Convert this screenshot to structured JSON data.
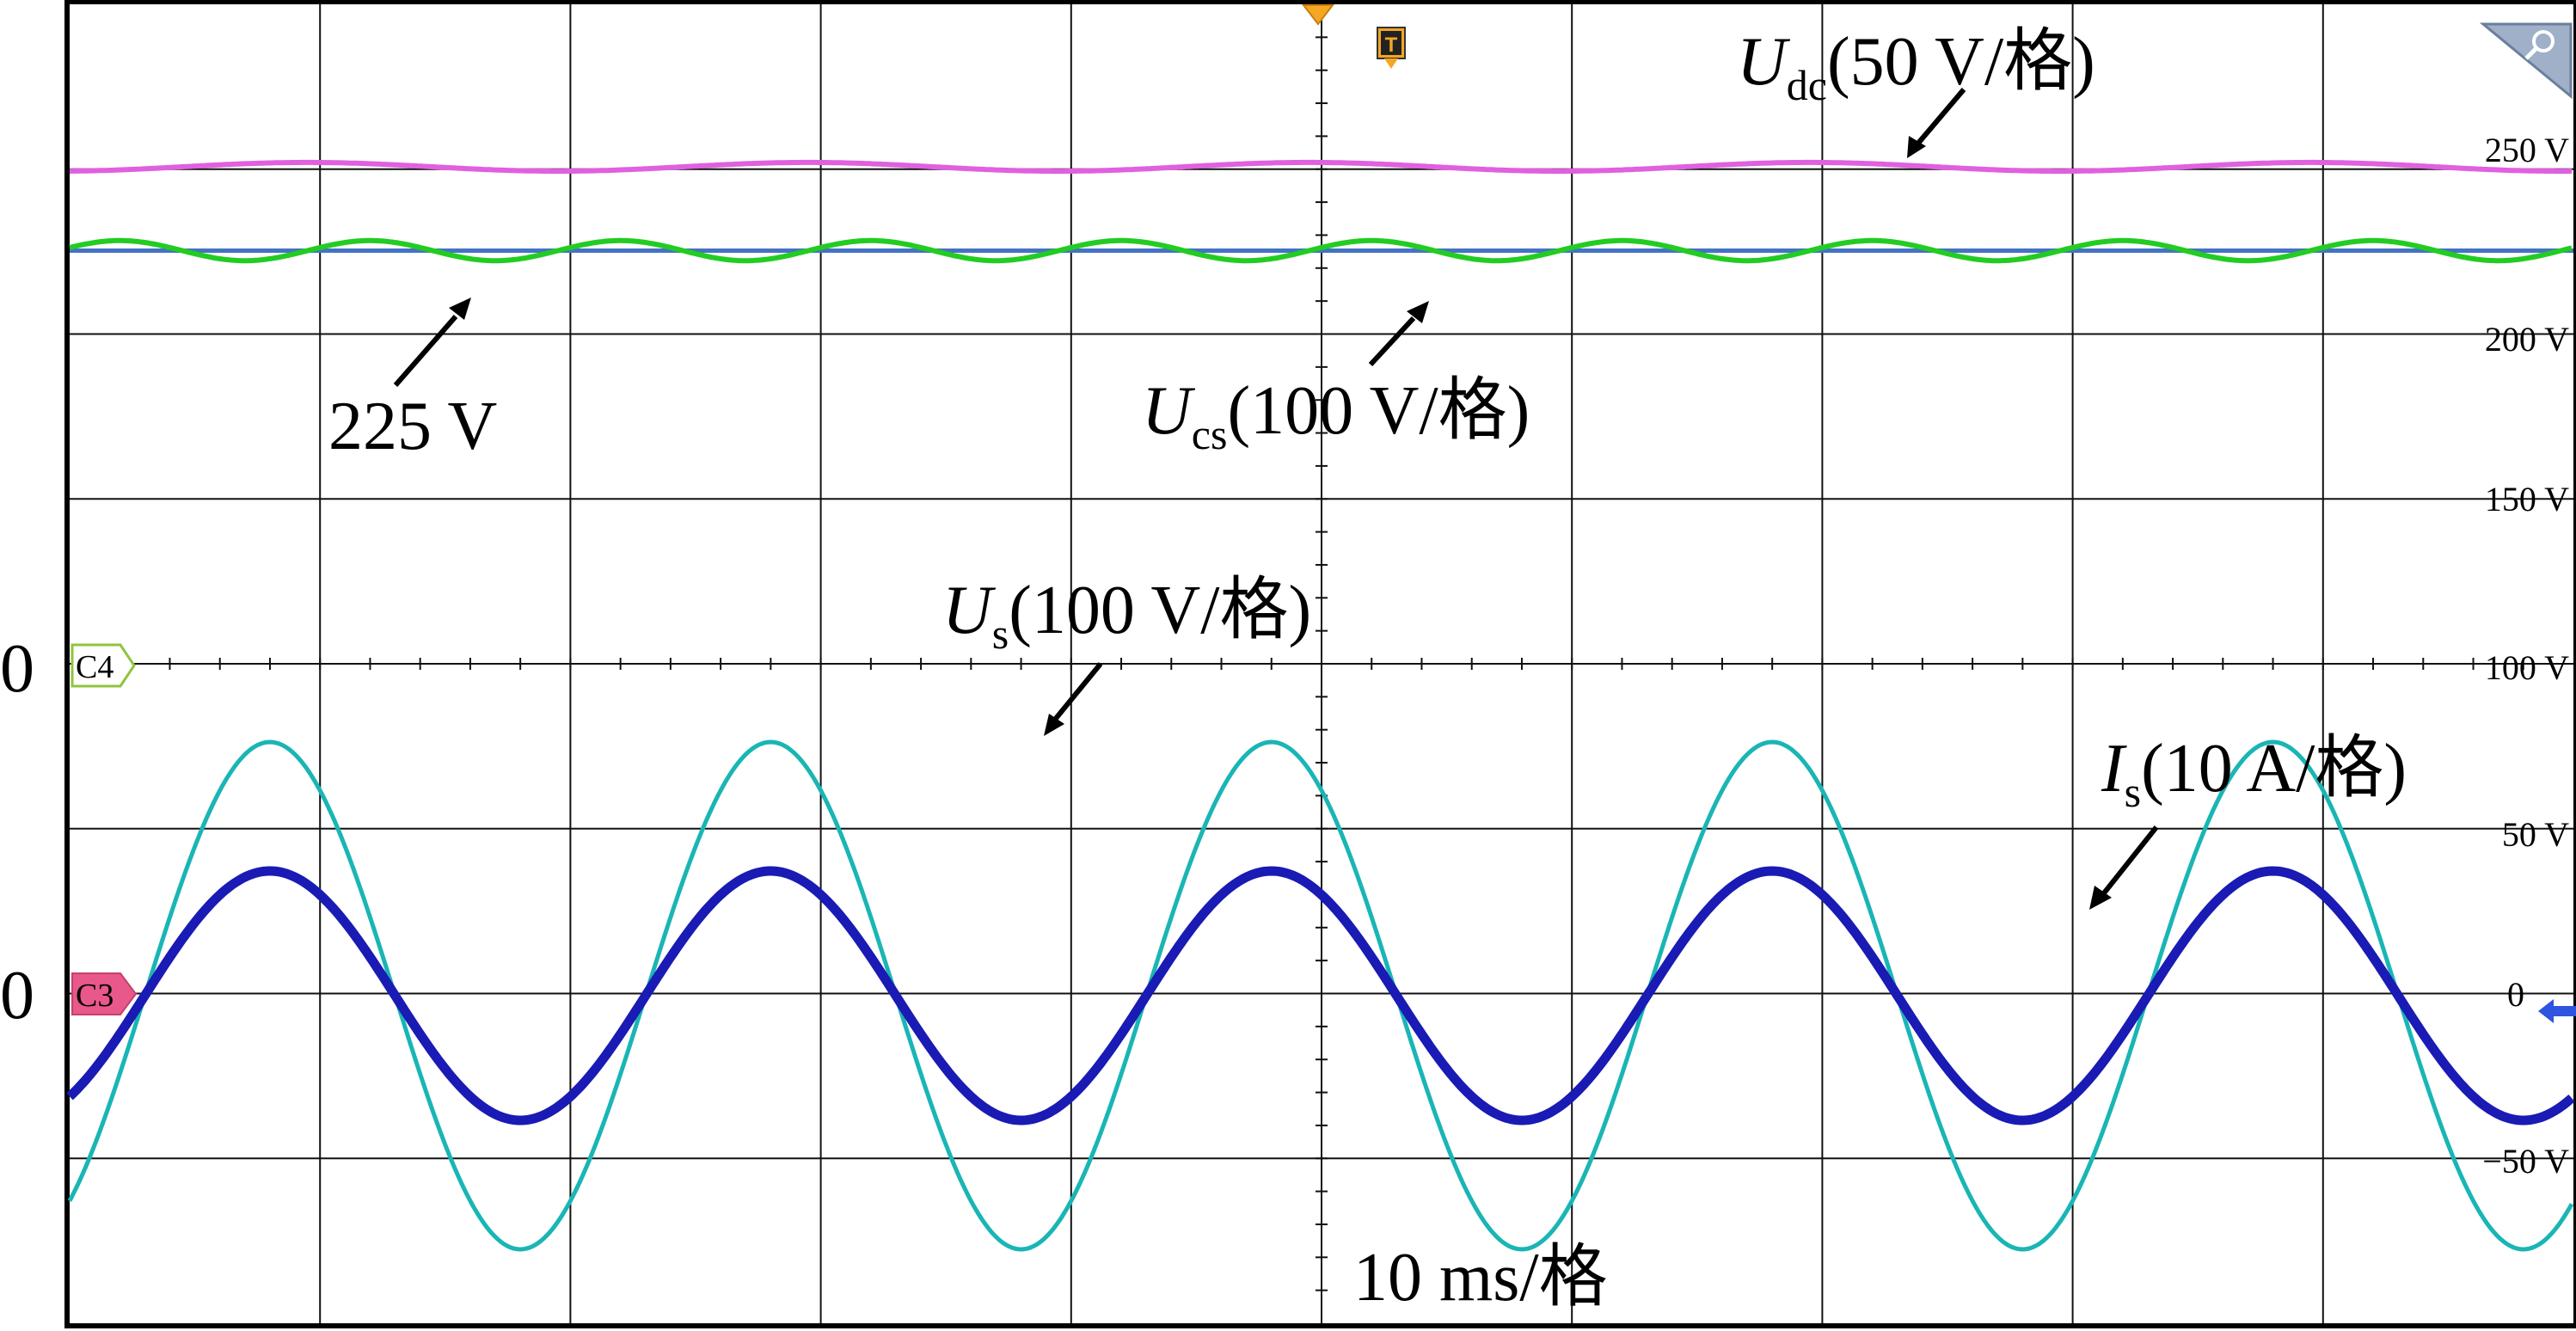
{
  "chart_data": {
    "type": "line",
    "time_scale_label": "10 ms/格",
    "right_axis": {
      "tick_labels": [
        "250 V",
        "200 V",
        "150 V",
        "100 V",
        "50 V",
        "0",
        "−50 V"
      ],
      "tick_values": [
        250,
        200,
        150,
        100,
        50,
        0,
        -50
      ]
    },
    "left_offset_labels": [
      "0",
      "0"
    ],
    "channel_markers": [
      "C4",
      "C3"
    ],
    "trigger_marker": "T",
    "reference_line": {
      "label": "225 V",
      "value": 225,
      "color": "#4472c4"
    },
    "series": [
      {
        "key": "udc",
        "symbol": "U",
        "subscript": "dc",
        "scale": "(50 V/格)",
        "color": "#e060e0",
        "waveform": {
          "offset": 250,
          "amplitude": 1.3,
          "period_ms": 20,
          "phase_ms": 4.5
        }
      },
      {
        "key": "ucs",
        "symbol": "U",
        "subscript": "cs",
        "scale": "(100 V/格)",
        "color": "#22cc22",
        "waveform": {
          "offset": 225,
          "amplitude": 3,
          "period_ms": 10,
          "phase_ms": -0.5
        }
      },
      {
        "key": "us",
        "symbol": "U",
        "subscript": "s",
        "scale": "(100 V/格)",
        "color": "#1ab5b5",
        "waveform": {
          "offset": 0,
          "amplitude": 157,
          "period_ms": 20,
          "phase_ms": 3
        }
      },
      {
        "key": "is",
        "symbol": "I",
        "subscript": "s",
        "scale": "(10 A/格)",
        "color": "#1a1ab4",
        "waveform": {
          "offset": 0,
          "amplitude": 7,
          "period_ms": 20,
          "phase_ms": 3
        }
      }
    ]
  }
}
